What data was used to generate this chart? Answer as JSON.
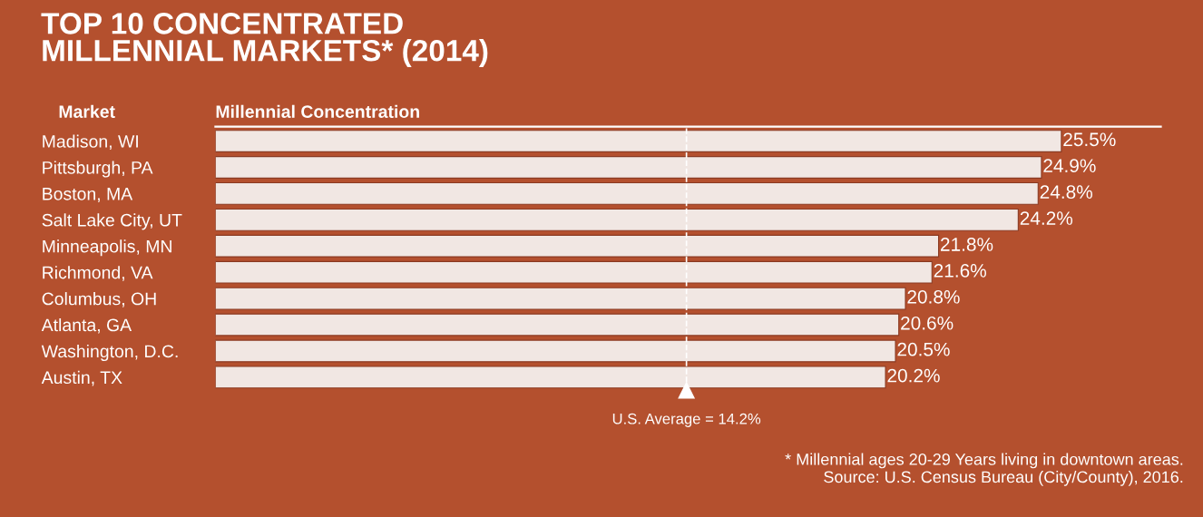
{
  "chart_data": {
    "type": "bar",
    "orientation": "horizontal",
    "title": "TOP 10 CONCENTRATED\nMILLENNIAL MARKETS* (2014)",
    "ylabel": "Market",
    "xlabel": "Millennial Concentration",
    "categories": [
      "Madison, WI",
      "Pittsburgh, PA",
      "Boston, MA",
      "Salt Lake City, UT",
      "Minneapolis, MN",
      "Richmond, VA",
      "Columbus, OH",
      "Atlanta, GA",
      "Washington, D.C.",
      "Austin, TX"
    ],
    "values": [
      25.5,
      24.9,
      24.8,
      24.2,
      21.8,
      21.6,
      20.8,
      20.6,
      20.5,
      20.2
    ],
    "value_labels": [
      "25.5%",
      "24.9%",
      "24.8%",
      "24.2%",
      "21.8%",
      "21.6%",
      "20.8%",
      "20.6%",
      "20.5%",
      "20.2%"
    ],
    "color": "#f1e7e3",
    "xlim": [
      0,
      28.5
    ],
    "tick_labels": "y",
    "grid": false,
    "ref_lines": [
      {
        "axis": "x",
        "value": 14.2,
        "label": "U.S. Average = 14.2%",
        "color": "#ffffff",
        "line_style": "dashed"
      }
    ],
    "annotations": [
      "* Millennial ages 20-29 Years living in downtown areas.\nSource: U.S. Census Bureau (City/County), 2016."
    ]
  }
}
